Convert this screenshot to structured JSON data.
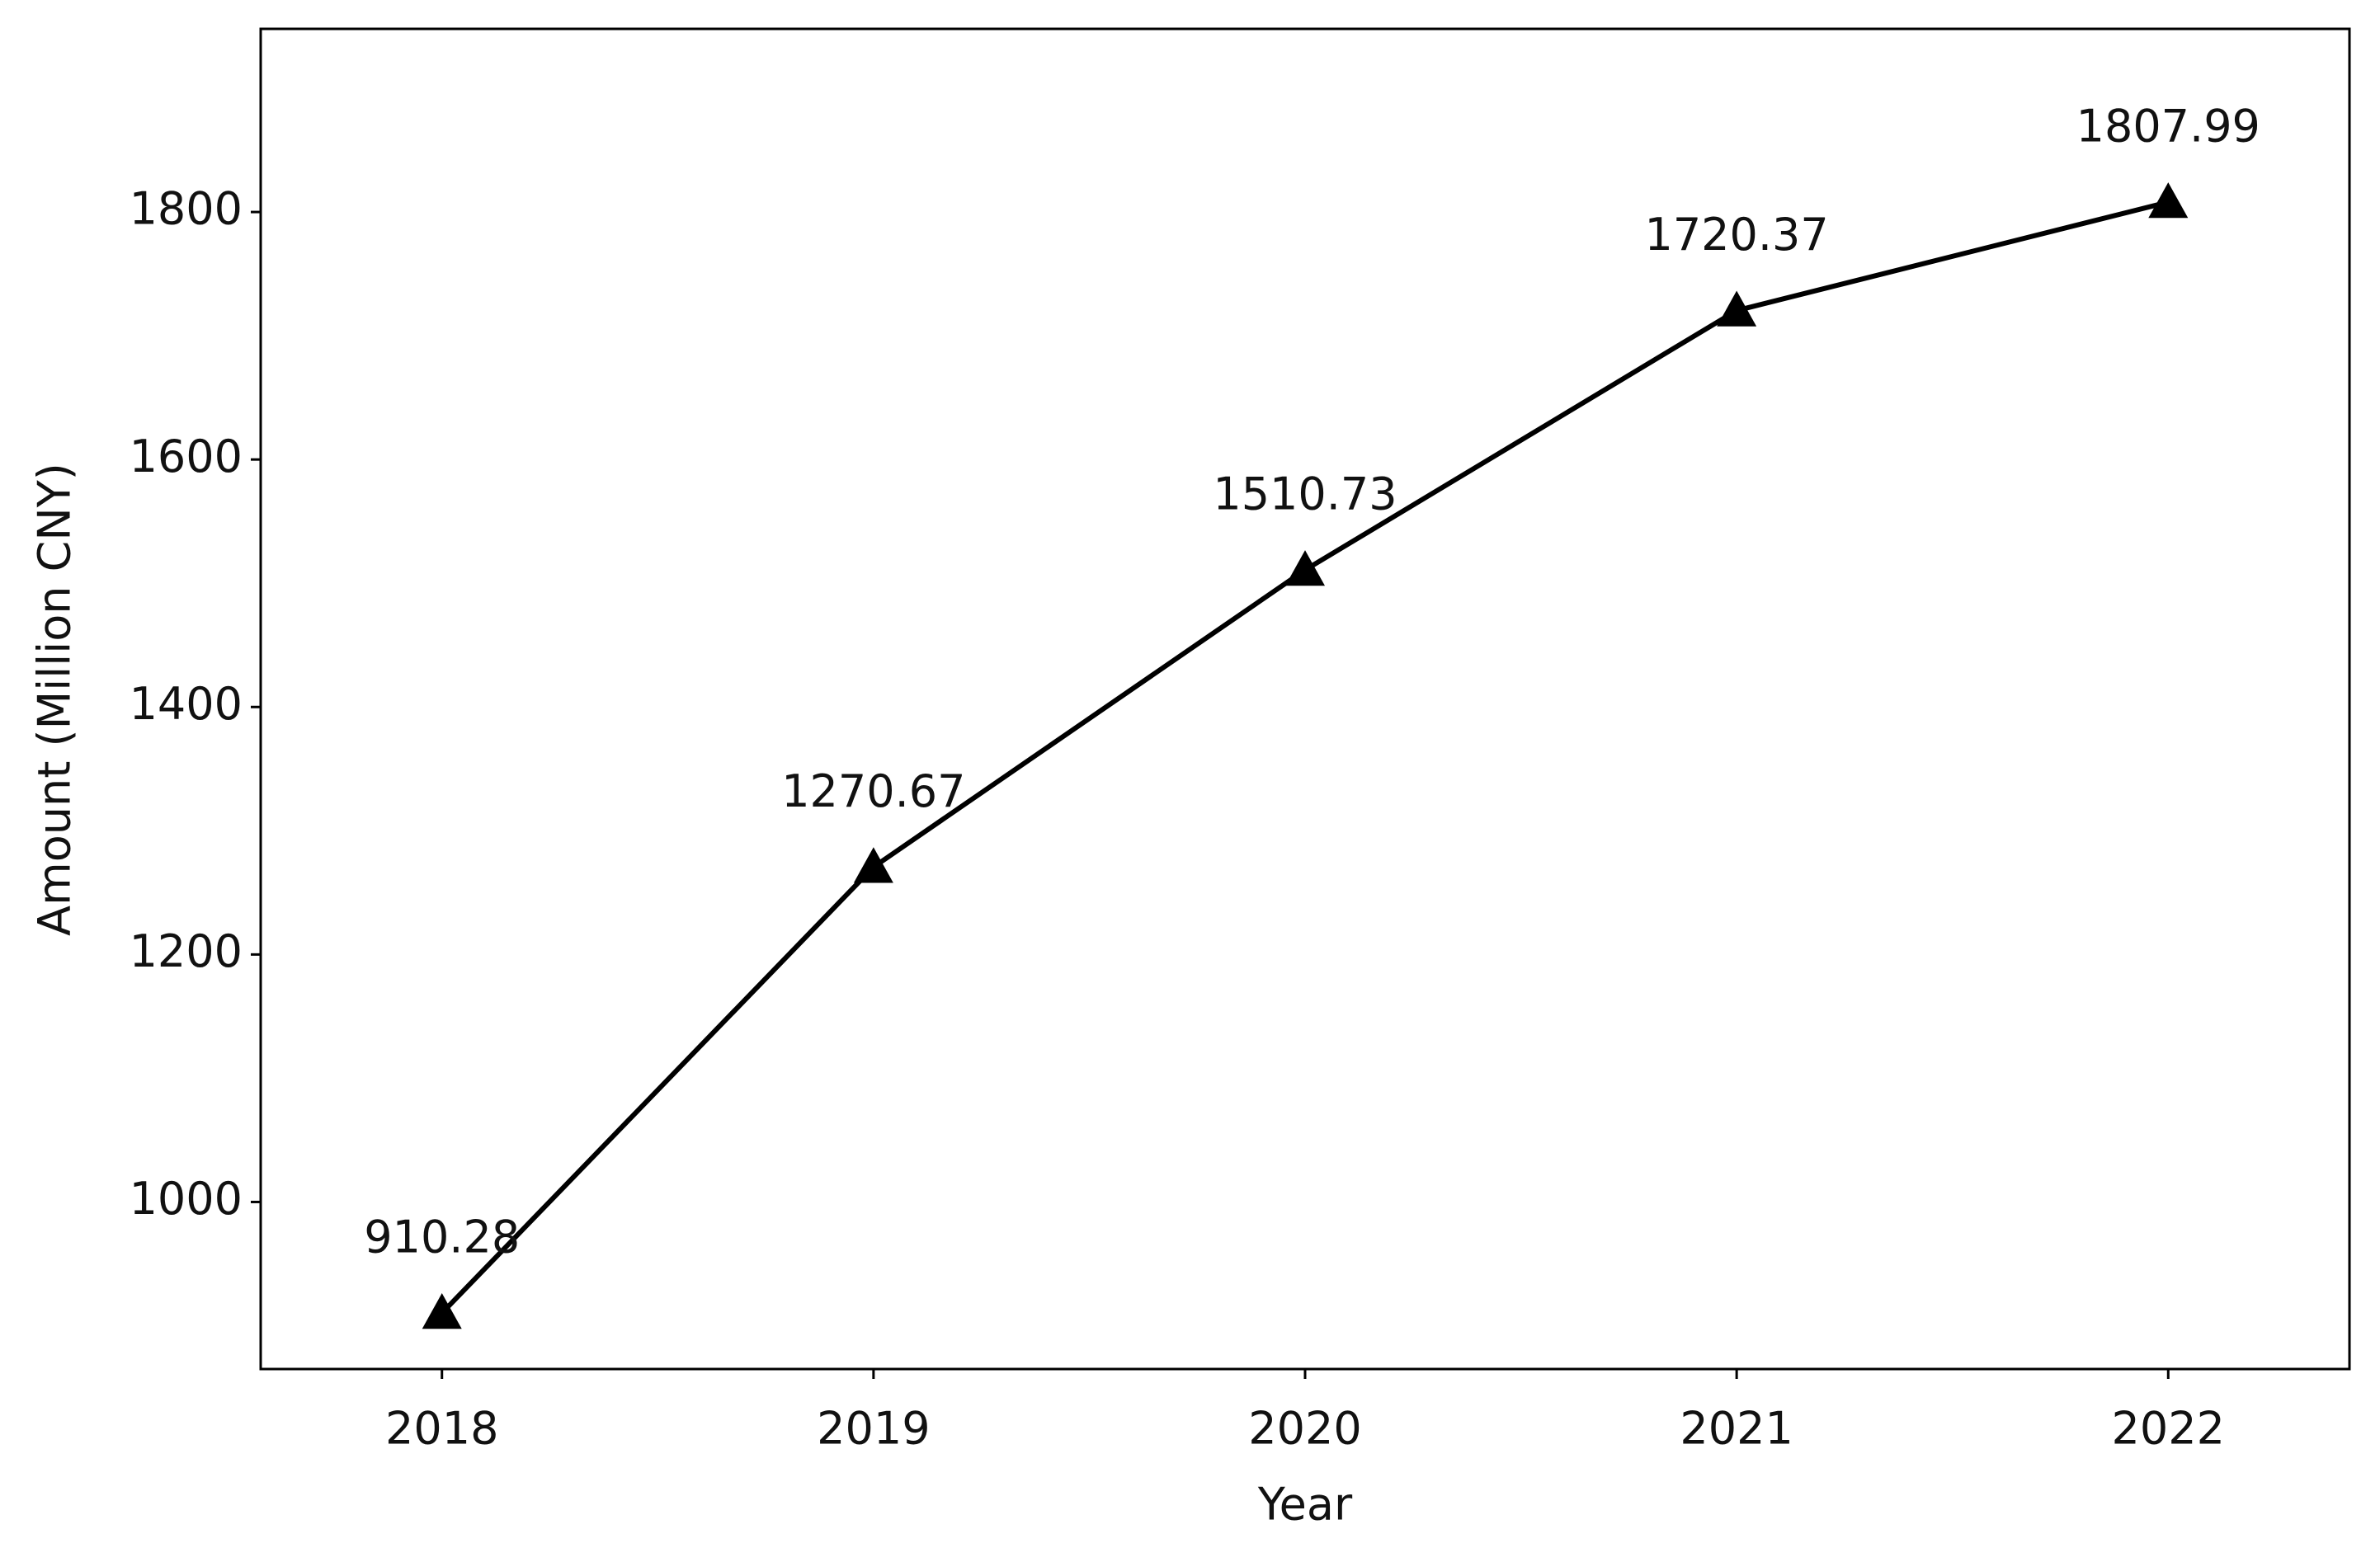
{
  "chart_data": {
    "type": "line",
    "x_label": "Year",
    "y_label": "Amount (Million CNY)",
    "categories": [
      "2018",
      "2019",
      "2020",
      "2021",
      "2022"
    ],
    "values": [
      910.28,
      1270.67,
      1510.73,
      1720.37,
      1807.99
    ],
    "color": "#000000",
    "marker": "triangle",
    "ylim": [
      865,
      1948
    ],
    "yticks": [
      1000,
      1200,
      1400,
      1600,
      1800
    ],
    "grid": false
  }
}
